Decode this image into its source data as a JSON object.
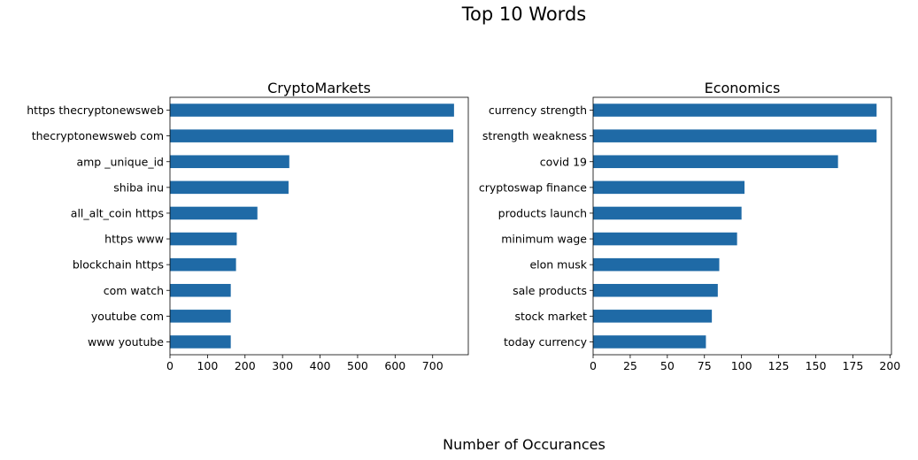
{
  "figure": {
    "suptitle": "Top 10 Words",
    "supxlabel": "Number of Occurances",
    "bar_color": "#1f6aa6"
  },
  "chart_data": [
    {
      "type": "bar",
      "orientation": "horizontal",
      "title": "CryptoMarkets",
      "categories": [
        "https thecryptonewsweb",
        "thecryptonewsweb com",
        "amp _unique_id",
        "shiba inu",
        "all_alt_coin https",
        "https www",
        "blockchain https",
        "com watch",
        "youtube com",
        "www youtube"
      ],
      "values": [
        757,
        755,
        318,
        316,
        233,
        178,
        176,
        162,
        162,
        162
      ],
      "xlabel": "",
      "ylabel": "",
      "xlim": [
        0,
        795
      ],
      "xticks": [
        0,
        100,
        200,
        300,
        400,
        500,
        600,
        700
      ],
      "grid": false,
      "legend": "none"
    },
    {
      "type": "bar",
      "orientation": "horizontal",
      "title": "Economics",
      "categories": [
        "currency strength",
        "strength weakness",
        "covid 19",
        "cryptoswap finance",
        "products launch",
        "minimum wage",
        "elon musk",
        "sale products",
        "stock market",
        "today currency"
      ],
      "values": [
        191,
        191,
        165,
        102,
        100,
        97,
        85,
        84,
        80,
        76
      ],
      "xlabel": "",
      "ylabel": "",
      "xlim": [
        0,
        201
      ],
      "xticks": [
        0,
        25,
        50,
        75,
        100,
        125,
        150,
        175,
        200
      ],
      "grid": false,
      "legend": "none"
    }
  ]
}
